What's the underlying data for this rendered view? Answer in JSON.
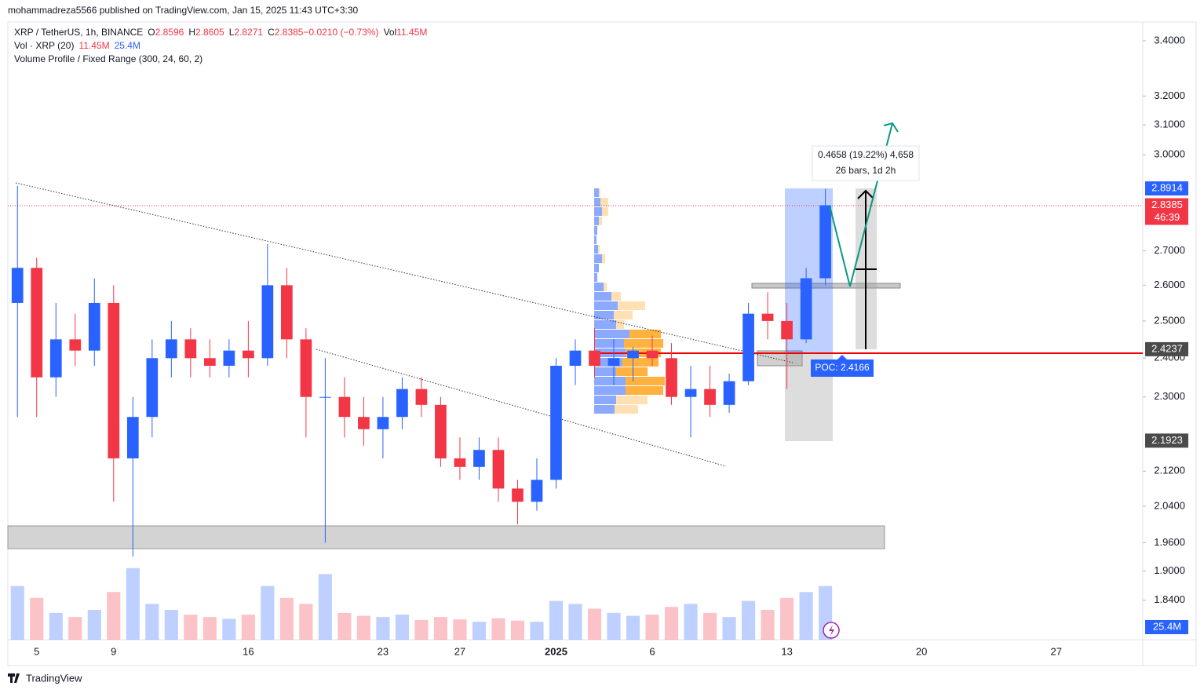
{
  "header": {
    "publisher": "mohammadreza5566 published on TradingView.com, Jan 15, 2025 11:43 UTC+3:30",
    "symbol": "XRP / TetherUS, 1h, BINANCE",
    "ohlc": [
      {
        "key": "O",
        "value": "2.8596"
      },
      {
        "key": "H",
        "value": "2.8605"
      },
      {
        "key": "L",
        "value": "2.8271"
      },
      {
        "key": "C",
        "value": "2.8385"
      },
      {
        "key": "",
        "value": "−0.0210 (−0.73%)"
      },
      {
        "key": "Vol",
        "value": "11.45M"
      }
    ],
    "volume_legend": "Vol · XRP (20)",
    "volume_values": [
      "11.45M",
      "25.4M"
    ],
    "profile_legend": "Volume Profile / Fixed Range (300, 24, 60, 2)"
  },
  "chart_data": {
    "type": "candlestick",
    "log": true,
    "categories": [
      null,
      "5",
      null,
      null,
      null,
      "9",
      null,
      null,
      null,
      null,
      null,
      null,
      "16",
      null,
      null,
      null,
      null,
      null,
      null,
      "23",
      null,
      null,
      null,
      "27",
      null,
      null,
      null,
      null,
      "2025",
      null,
      null,
      null,
      null,
      "6",
      null,
      null,
      null,
      null,
      null,
      null,
      "13",
      null,
      null,
      null,
      null,
      null,
      null,
      "20",
      null,
      null,
      null,
      null,
      null,
      null,
      "27",
      null,
      null,
      null,
      null
    ],
    "open": [
      2.55,
      2.65,
      2.35,
      2.45,
      2.42,
      2.55,
      2.15,
      2.25,
      2.4,
      2.45,
      2.4,
      2.38,
      2.42,
      2.4,
      2.6,
      2.45,
      2.3,
      2.3,
      2.25,
      2.22,
      2.25,
      2.32,
      2.28,
      2.15,
      2.13,
      2.17,
      2.08,
      2.05,
      2.1,
      2.38,
      2.42,
      2.38,
      2.4,
      2.42,
      2.4,
      2.3,
      2.32,
      2.28,
      2.34,
      2.52,
      2.5,
      2.45,
      2.62,
      null,
      null,
      null,
      null,
      null,
      null,
      null,
      null,
      null,
      null,
      null,
      null,
      null,
      null,
      null,
      null
    ],
    "high": [
      2.9,
      2.68,
      2.55,
      2.52,
      2.62,
      2.6,
      2.3,
      2.45,
      2.5,
      2.48,
      2.45,
      2.45,
      2.5,
      2.72,
      2.65,
      2.48,
      2.4,
      2.35,
      2.3,
      2.3,
      2.35,
      2.35,
      2.3,
      2.2,
      2.2,
      2.2,
      2.1,
      2.15,
      2.4,
      2.45,
      2.48,
      2.45,
      2.43,
      2.46,
      2.44,
      2.38,
      2.38,
      2.36,
      2.55,
      2.58,
      2.55,
      2.65,
      2.89,
      null,
      null,
      null,
      null,
      null,
      null,
      null,
      null,
      null,
      null,
      null,
      null,
      null,
      null,
      null,
      null
    ],
    "low": [
      2.25,
      2.25,
      2.3,
      2.38,
      2.38,
      2.05,
      1.93,
      2.2,
      2.35,
      2.35,
      2.35,
      2.35,
      2.35,
      2.38,
      2.4,
      2.2,
      1.96,
      2.2,
      2.18,
      2.15,
      2.22,
      2.25,
      2.13,
      2.1,
      2.1,
      2.05,
      2.0,
      2.03,
      2.08,
      2.33,
      2.35,
      2.33,
      2.34,
      2.38,
      2.28,
      2.2,
      2.25,
      2.26,
      2.33,
      2.45,
      2.32,
      2.44,
      2.6,
      null,
      null,
      null,
      null,
      null,
      null,
      null,
      null,
      null,
      null,
      null,
      null,
      null,
      null,
      null,
      null
    ],
    "close": [
      2.65,
      2.35,
      2.45,
      2.42,
      2.55,
      2.15,
      2.25,
      2.4,
      2.45,
      2.4,
      2.38,
      2.42,
      2.4,
      2.6,
      2.45,
      2.3,
      2.3,
      2.25,
      2.22,
      2.25,
      2.32,
      2.28,
      2.15,
      2.13,
      2.17,
      2.08,
      2.05,
      2.1,
      2.38,
      2.42,
      2.38,
      2.4,
      2.42,
      2.4,
      2.3,
      2.32,
      2.28,
      2.34,
      2.52,
      2.5,
      2.45,
      2.62,
      2.8385,
      null,
      null,
      null,
      null,
      null,
      null,
      null,
      null,
      null,
      null,
      null,
      null,
      null,
      null,
      null,
      null
    ],
    "volume": [
      900,
      700,
      450,
      380,
      500,
      800,
      1200,
      600,
      500,
      420,
      380,
      350,
      420,
      900,
      700,
      600,
      1100,
      450,
      400,
      380,
      420,
      330,
      380,
      340,
      300,
      360,
      320,
      300,
      650,
      600,
      520,
      450,
      400,
      420,
      550,
      600,
      450,
      380,
      650,
      500,
      700,
      800,
      900,
      null,
      null,
      null,
      null,
      null,
      null,
      null,
      null,
      null,
      null,
      null,
      null,
      null,
      null,
      null,
      null
    ],
    "volume_ylim": [
      0,
      2500
    ],
    "up_color": "#2962ff",
    "down_color": "#f23645",
    "ylim": [
      1.762,
      3.471
    ],
    "yticks": [
      {
        "value": 3.4,
        "label": "3.4000"
      },
      {
        "value": 3.2,
        "label": "3.2000"
      },
      {
        "value": 3.1,
        "label": "3.1000"
      },
      {
        "value": 3.0,
        "label": "3.0000"
      },
      {
        "value": 2.7,
        "label": "2.7000"
      },
      {
        "value": 2.6,
        "label": "2.6000"
      },
      {
        "value": 2.5,
        "label": "2.5000"
      },
      {
        "value": 2.4,
        "label": "2.4000"
      },
      {
        "value": 2.3,
        "label": "2.3000"
      },
      {
        "value": 2.12,
        "label": "2.1200"
      },
      {
        "value": 2.04,
        "label": "2.0400"
      },
      {
        "value": 1.96,
        "label": "1.9600"
      },
      {
        "value": 1.9,
        "label": "1.9000"
      },
      {
        "value": 1.84,
        "label": "1.8400"
      }
    ],
    "price_labels": [
      {
        "value": 2.8914,
        "label": "2.8914",
        "color": "#2962ff"
      },
      {
        "value": 2.8385,
        "label": "2.8385",
        "color": "#f23645",
        "timer": "46:39"
      },
      {
        "value": 2.4237,
        "label": "2.4237",
        "color": "#4a4a4a"
      },
      {
        "value": 2.1923,
        "label": "2.1923",
        "color": "#4a4a4a"
      }
    ],
    "poc_label": "POC: 2.4166",
    "measure": [
      "0.4658 (19.22%) 4,658",
      "26 bars, 1d 2h"
    ],
    "volume_tag": "25.4M"
  },
  "footer": "TradingView"
}
